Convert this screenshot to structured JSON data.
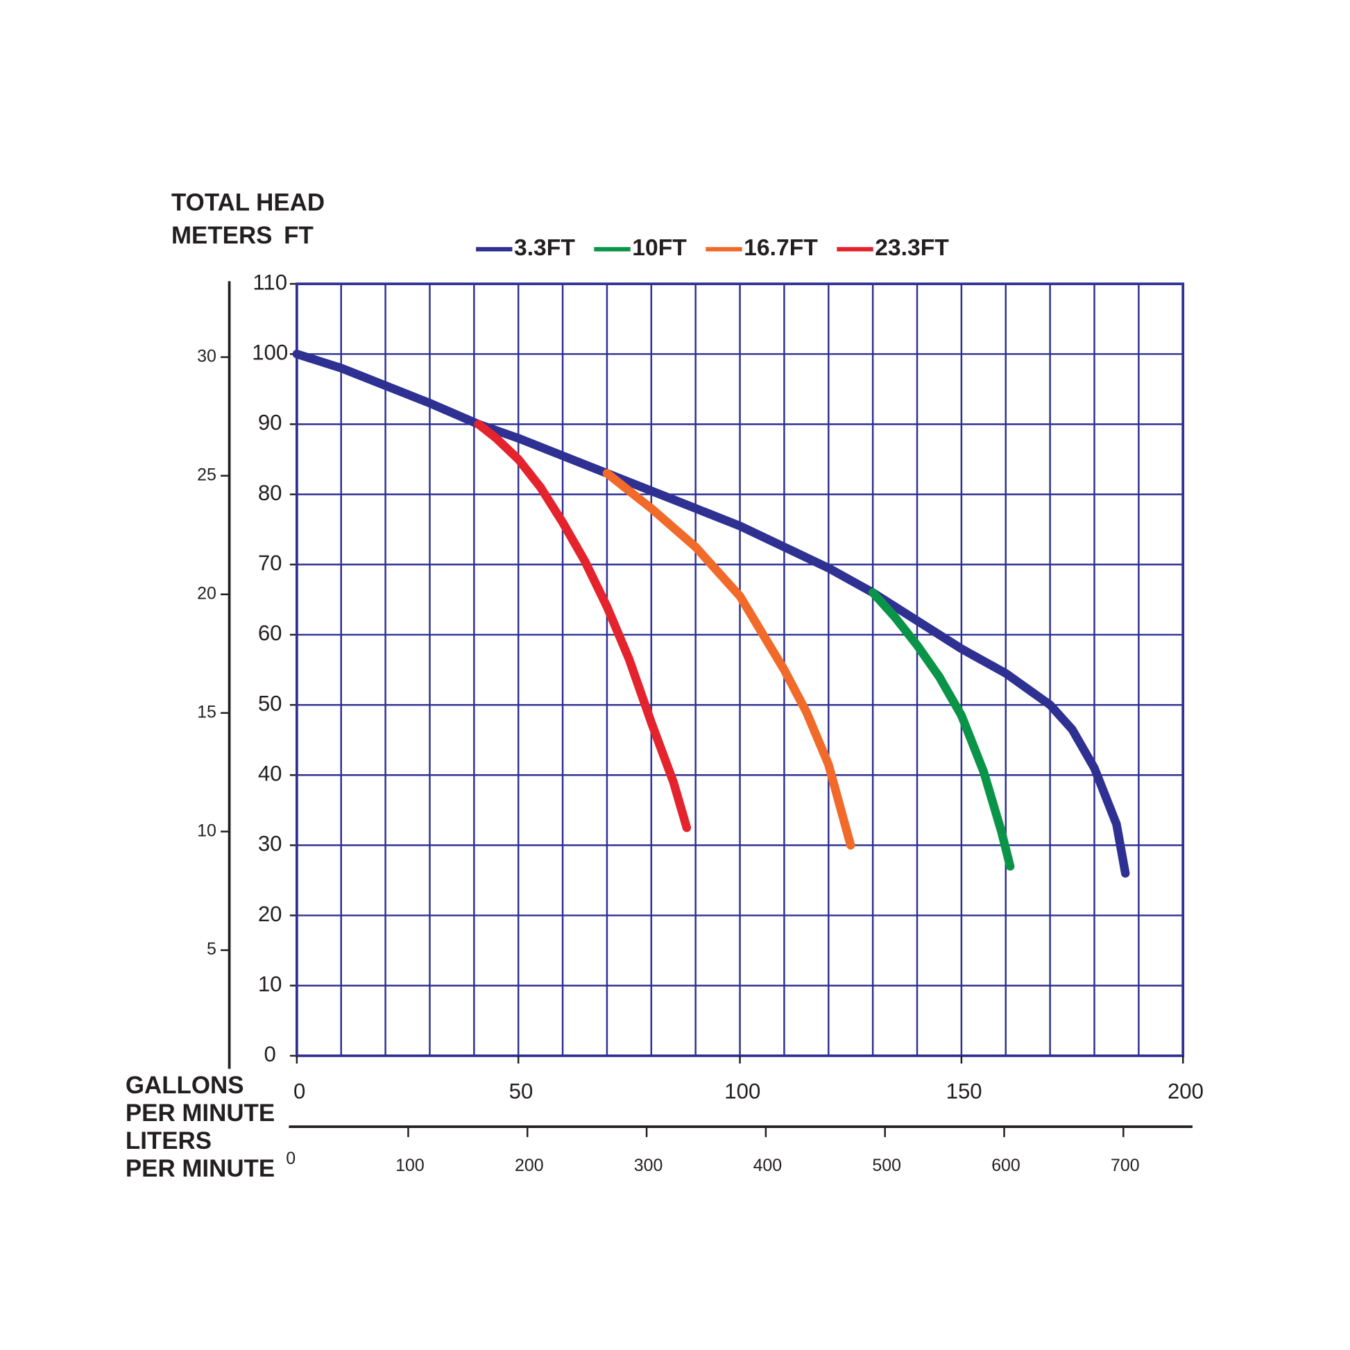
{
  "chart_data": {
    "type": "line",
    "y_title": "TOTAL HEAD",
    "y2_label": "METERS",
    "y_label": "FT",
    "x_label": [
      "GALLONS",
      "PER MINUTE"
    ],
    "x2_label": [
      "LITERS",
      "PER MINUTE"
    ],
    "xlim": [
      0,
      200
    ],
    "xticks": [
      0,
      50,
      100,
      150,
      200
    ],
    "xgrid": [
      0,
      10,
      20,
      30,
      40,
      50,
      60,
      70,
      80,
      90,
      100,
      110,
      120,
      130,
      140,
      150,
      160,
      170,
      180,
      190,
      200
    ],
    "ylim": [
      0,
      110
    ],
    "yticks": [
      0,
      10,
      20,
      30,
      40,
      50,
      60,
      70,
      80,
      90,
      100,
      110
    ],
    "y2lim": [
      0,
      33.2
    ],
    "y2ticks": [
      5,
      10,
      15,
      20,
      25,
      30
    ],
    "x2lim": [
      0,
      758
    ],
    "x2ticks": [
      0,
      100,
      200,
      300,
      400,
      500,
      600,
      700
    ],
    "grid": true,
    "grid_color": "#2e3192",
    "series": [
      {
        "name": "3.3FT",
        "color": "#2e3192",
        "x": [
          0,
          10,
          20,
          30,
          41,
          50,
          60,
          70,
          80,
          90,
          100,
          110,
          120,
          130,
          140,
          150,
          160,
          170,
          175,
          180,
          185,
          187
        ],
        "values": [
          100,
          98,
          95.5,
          93,
          90,
          88,
          85.5,
          83,
          80.5,
          78,
          75.5,
          72.5,
          69.5,
          66,
          62,
          58,
          54.5,
          50,
          46.5,
          41,
          33,
          26
        ]
      },
      {
        "name": "10FT",
        "color": "#0a9447",
        "x": [
          130,
          135,
          140,
          145,
          150,
          155,
          159,
          161
        ],
        "values": [
          66,
          62.5,
          58.5,
          54,
          48.5,
          40.5,
          32,
          27
        ]
      },
      {
        "name": "16.7FT",
        "color": "#f26a2a",
        "x": [
          70,
          80,
          90,
          100,
          110,
          115,
          120,
          125
        ],
        "values": [
          83,
          78,
          72.5,
          65.5,
          55,
          49,
          41.5,
          30
        ]
      },
      {
        "name": "23.3FT",
        "color": "#e4232d",
        "x": [
          41,
          45,
          50,
          55,
          60,
          65,
          70,
          75,
          80,
          85,
          88
        ],
        "values": [
          90,
          88,
          85,
          81,
          76,
          70.5,
          64,
          56.5,
          47.5,
          39,
          32.5
        ]
      }
    ]
  }
}
